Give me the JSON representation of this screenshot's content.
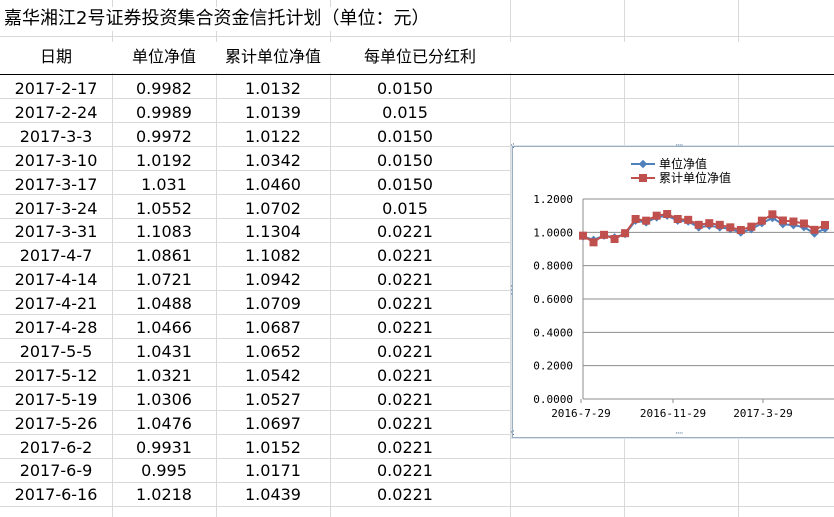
{
  "title": "嘉华湘江2号证券投资集合资金信托计划（单位：元）",
  "table": {
    "headers": [
      "日期",
      "单位净值",
      "累计单位净值",
      "每单位已分红利"
    ],
    "rows": [
      [
        "2017-2-17",
        "0.9982",
        "1.0132",
        "0.0150"
      ],
      [
        "2017-2-24",
        "0.9989",
        "1.0139",
        "0.015"
      ],
      [
        "2017-3-3",
        "0.9972",
        "1.0122",
        "0.0150"
      ],
      [
        "2017-3-10",
        "1.0192",
        "1.0342",
        "0.0150"
      ],
      [
        "2017-3-17",
        "1.031",
        "1.0460",
        "0.0150"
      ],
      [
        "2017-3-24",
        "1.0552",
        "1.0702",
        "0.015"
      ],
      [
        "2017-3-31",
        "1.1083",
        "1.1304",
        "0.0221"
      ],
      [
        "2017-4-7",
        "1.0861",
        "1.1082",
        "0.0221"
      ],
      [
        "2017-4-14",
        "1.0721",
        "1.0942",
        "0.0221"
      ],
      [
        "2017-4-21",
        "1.0488",
        "1.0709",
        "0.0221"
      ],
      [
        "2017-4-28",
        "1.0466",
        "1.0687",
        "0.0221"
      ],
      [
        "2017-5-5",
        "1.0431",
        "1.0652",
        "0.0221"
      ],
      [
        "2017-5-12",
        "1.0321",
        "1.0542",
        "0.0221"
      ],
      [
        "2017-5-19",
        "1.0306",
        "1.0527",
        "0.0221"
      ],
      [
        "2017-5-26",
        "1.0476",
        "1.0697",
        "0.0221"
      ],
      [
        "2017-6-2",
        "0.9931",
        "1.0152",
        "0.0221"
      ],
      [
        "2017-6-9",
        "0.995",
        "1.0171",
        "0.0221"
      ],
      [
        "2017-6-16",
        "1.0218",
        "1.0439",
        "0.0221"
      ]
    ]
  },
  "chart_data": {
    "type": "line",
    "legend_position": "top",
    "grid": true,
    "ylim": [
      0,
      1.2
    ],
    "y_ticks": [
      "0.0000",
      "0.2000",
      "0.4000",
      "0.6000",
      "0.8000",
      "1.0000",
      "1.2000"
    ],
    "x_ticks": [
      "2016-7-29",
      "2016-11-29",
      "2017-3-29"
    ],
    "x": [
      "2016-7-29",
      "2016-8-12",
      "2016-8-26",
      "2016-9-9",
      "2016-9-23",
      "2016-10-7",
      "2016-10-21",
      "2016-11-4",
      "2016-11-18",
      "2016-12-2",
      "2016-12-16",
      "2016-12-30",
      "2017-1-13",
      "2017-1-27",
      "2017-2-10",
      "2017-2-24",
      "2017-3-10",
      "2017-3-24",
      "2017-4-7",
      "2017-4-21",
      "2017-5-5",
      "2017-5-19",
      "2017-6-2",
      "2017-6-16"
    ],
    "series": [
      {
        "name": "单位净值",
        "color": "#4f81bd",
        "marker": "diamond",
        "values": [
          0.975,
          0.955,
          0.98,
          0.97,
          0.99,
          1.07,
          1.06,
          1.09,
          1.1,
          1.07,
          1.065,
          1.03,
          1.04,
          1.03,
          1.02,
          0.999,
          1.019,
          1.055,
          1.086,
          1.049,
          1.043,
          1.031,
          0.993,
          1.022
        ]
      },
      {
        "name": "累计单位净值",
        "color": "#c0504d",
        "marker": "square",
        "values": [
          0.98,
          0.94,
          0.985,
          0.96,
          0.995,
          1.08,
          1.07,
          1.1,
          1.11,
          1.08,
          1.075,
          1.045,
          1.055,
          1.045,
          1.03,
          1.014,
          1.034,
          1.07,
          1.108,
          1.071,
          1.065,
          1.053,
          1.015,
          1.044
        ]
      }
    ]
  }
}
